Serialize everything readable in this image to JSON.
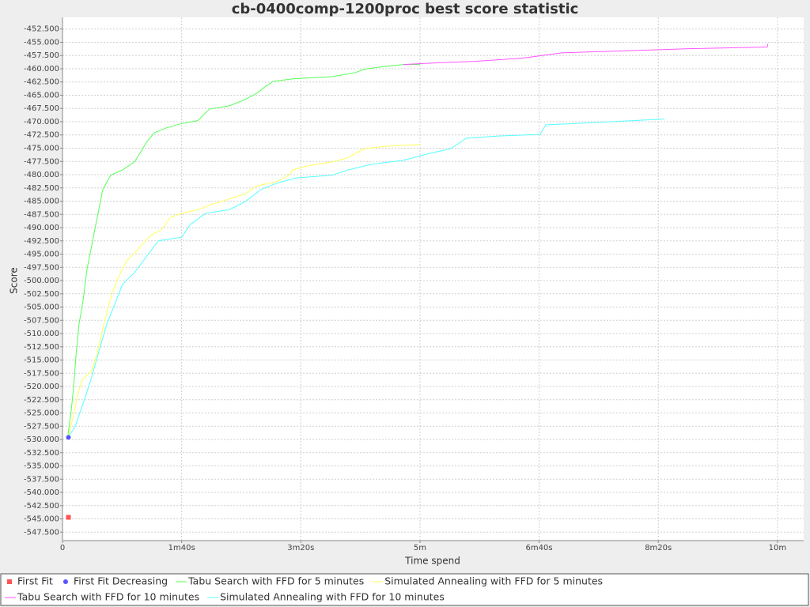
{
  "chart_data": {
    "type": "line",
    "title": "cb-0400comp-1200proc best score statistic",
    "x_label": "Time spend",
    "y_label": "Score",
    "xlim": [
      0,
      622
    ],
    "ylim": [
      -549.1,
      -450.3
    ],
    "grid": true,
    "legend": "bottom",
    "xticks": [
      0,
      {
        "value": 100,
        "label": "1m40s"
      },
      {
        "value": 200,
        "label": "3m20s"
      },
      {
        "value": 300,
        "label": "5m"
      },
      {
        "value": 400,
        "label": "6m40s"
      },
      {
        "value": 500,
        "label": "8m20s"
      },
      {
        "value": 600,
        "label": "10m"
      }
    ],
    "yticks": [
      {
        "value": -452.5,
        "label": "-452.500"
      },
      {
        "value": -455,
        "label": "-455.000"
      },
      {
        "value": -457.5,
        "label": "-457.500"
      },
      {
        "value": -460,
        "label": "-460.000"
      },
      {
        "value": -462.5,
        "label": "-462.500"
      },
      {
        "value": -465,
        "label": "-465.000"
      },
      {
        "value": -467.5,
        "label": "-467.500"
      },
      {
        "value": -470,
        "label": "-470.000"
      },
      {
        "value": -472.5,
        "label": "-472.500"
      },
      {
        "value": -475,
        "label": "-475.000"
      },
      {
        "value": -477.5,
        "label": "-477.500"
      },
      {
        "value": -480,
        "label": "-480.000"
      },
      {
        "value": -482.5,
        "label": "-482.500"
      },
      {
        "value": -485,
        "label": "-485.000"
      },
      {
        "value": -487.5,
        "label": "-487.500"
      },
      {
        "value": -490,
        "label": "-490.000"
      },
      {
        "value": -492.5,
        "label": "-492.500"
      },
      {
        "value": -495,
        "label": "-495.000"
      },
      {
        "value": -497.5,
        "label": "-497.500"
      },
      {
        "value": -500,
        "label": "-500.000"
      },
      {
        "value": -502.5,
        "label": "-502.500"
      },
      {
        "value": -505,
        "label": "-505.000"
      },
      {
        "value": -507.5,
        "label": "-507.500"
      },
      {
        "value": -510,
        "label": "-510.000"
      },
      {
        "value": -512.5,
        "label": "-512.500"
      },
      {
        "value": -515,
        "label": "-515.000"
      },
      {
        "value": -517.5,
        "label": "-517.500"
      },
      {
        "value": -520,
        "label": "-520.000"
      },
      {
        "value": -522.5,
        "label": "-522.500"
      },
      {
        "value": -525,
        "label": "-525.000"
      },
      {
        "value": -527.5,
        "label": "-527.500"
      },
      {
        "value": -530,
        "label": "-530.000"
      },
      {
        "value": -532.5,
        "label": "-532.500"
      },
      {
        "value": -535,
        "label": "-535.000"
      },
      {
        "value": -537.5,
        "label": "-537.500"
      },
      {
        "value": -540,
        "label": "-540.000"
      },
      {
        "value": -542.5,
        "label": "-542.500"
      },
      {
        "value": -545,
        "label": "-545.000"
      },
      {
        "value": -547.5,
        "label": "-547.500"
      }
    ],
    "series": [
      {
        "name": "First Fit",
        "color": "#ff5555",
        "marker": "square",
        "x": [
          5
        ],
        "values": [
          -544.7
        ]
      },
      {
        "name": "First Fit Decreasing",
        "color": "#5555ff",
        "marker": "circle",
        "x": [
          5
        ],
        "values": [
          -529.6
        ]
      },
      {
        "name": "Tabu Search with FFD for 5 minutes",
        "color": "#55ff55",
        "marker": "line",
        "x": [
          4.6,
          7.3,
          9.3,
          11.3,
          13.9,
          17.3,
          20.6,
          24.6,
          28.5,
          31.2,
          33.8,
          40.5,
          50.4,
          60.4,
          65.7,
          70.4,
          77,
          86.9,
          98.9,
          113.5,
          123.4,
          140,
          153.3,
          163.3,
          169.9,
          176.6,
          193.1,
          226.3,
          246.2,
          252.9,
          272.8,
          286,
          300
        ],
        "values": [
          -529.1,
          -524.6,
          -520.2,
          -514.2,
          -508.2,
          -503.7,
          -497.8,
          -493.3,
          -488.8,
          -485.8,
          -482.8,
          -480.1,
          -479.1,
          -477.6,
          -475.7,
          -473.9,
          -472.1,
          -471.2,
          -470.4,
          -469.8,
          -467.6,
          -467,
          -465.8,
          -464.6,
          -463.4,
          -462.4,
          -461.9,
          -461.5,
          -460.7,
          -460.1,
          -459.5,
          -459.2,
          -459.2
        ]
      },
      {
        "name": "Simulated Annealing with FFD for 5 minutes",
        "color": "#ffff55",
        "marker": "line",
        "x": [
          4.6,
          8.6,
          12.6,
          16.6,
          23.9,
          28.5,
          32.5,
          37.2,
          41.8,
          47.1,
          53.8,
          63.7,
          73.7,
          83.6,
          90.3,
          100.2,
          113.5,
          126.8,
          140,
          153.3,
          163.3,
          179.9,
          189.9,
          193.1,
          206.4,
          226.3,
          239.6,
          252.9,
          272.8,
          300
        ],
        "values": [
          -529.6,
          -526.1,
          -521.7,
          -518.7,
          -517.2,
          -514.2,
          -510.5,
          -506,
          -502.2,
          -499.3,
          -496.3,
          -494,
          -491.5,
          -490.3,
          -488.1,
          -487.3,
          -486.6,
          -485.5,
          -484.6,
          -483.6,
          -482.1,
          -481.3,
          -480.1,
          -479.1,
          -478.3,
          -477.6,
          -476.8,
          -475.1,
          -474.6,
          -474.3
        ]
      },
      {
        "name": "Tabu Search with FFD for 10 minutes",
        "color": "#ff55ff",
        "marker": "line",
        "x": [
          286,
          312.6,
          345.8,
          385.6,
          405.5,
          418.8,
          528.3,
          591.4,
          592
        ],
        "values": [
          -459.2,
          -458.9,
          -458.6,
          -458,
          -457.4,
          -457,
          -456.2,
          -455.9,
          -455.3
        ]
      },
      {
        "name": "Simulated Annealing with FFD for 10 minutes",
        "color": "#55ffff",
        "marker": "line",
        "x": [
          4.6,
          10.6,
          17.3,
          23.9,
          30.5,
          37.2,
          43.8,
          50.4,
          60.4,
          70.4,
          80.3,
          100.2,
          106.8,
          120.1,
          140,
          153.3,
          166.6,
          179.9,
          196.5,
          226.3,
          239.6,
          260.2,
          286,
          305.9,
          325.8,
          339.1,
          365.7,
          400.9,
          405.5,
          451.9,
          478.5,
          505
        ],
        "values": [
          -529.6,
          -527.6,
          -523.2,
          -518.7,
          -513.4,
          -508.2,
          -504.5,
          -500.7,
          -498.5,
          -495.5,
          -492.5,
          -491.8,
          -489.5,
          -487.3,
          -486.6,
          -485.1,
          -482.8,
          -481.6,
          -480.6,
          -480.1,
          -479.1,
          -478,
          -477.3,
          -476.1,
          -475.1,
          -473.1,
          -472.7,
          -472.4,
          -470.6,
          -470.1,
          -469.8,
          -469.5
        ]
      }
    ]
  }
}
